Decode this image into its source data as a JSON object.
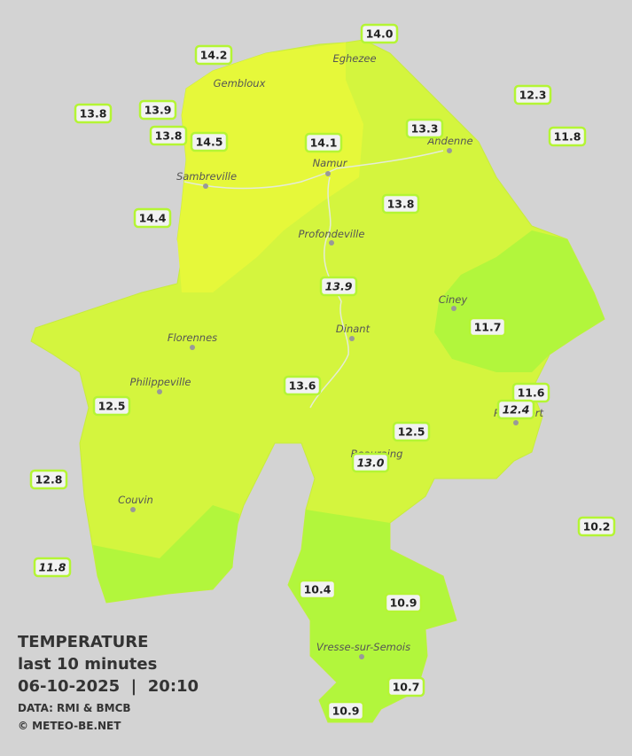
{
  "stations": [
    {
      "text": "14.0",
      "italic": false
    },
    {
      "text": "14.2",
      "italic": false
    },
    {
      "text": "13.9",
      "italic": false
    },
    {
      "text": "13.8",
      "italic": false
    },
    {
      "text": "13.8",
      "italic": false
    },
    {
      "text": "14.5",
      "italic": false
    },
    {
      "text": "14.1",
      "italic": false
    },
    {
      "text": "13.3",
      "italic": false
    },
    {
      "text": "12.3",
      "italic": false
    },
    {
      "text": "11.8",
      "italic": false
    },
    {
      "text": "13.8",
      "italic": false
    },
    {
      "text": "14.4",
      "italic": false
    },
    {
      "text": "13.9",
      "italic": true
    },
    {
      "text": "11.7",
      "italic": false
    },
    {
      "text": "13.6",
      "italic": false
    },
    {
      "text": "11.6",
      "italic": false
    },
    {
      "text": "12.4",
      "italic": true
    },
    {
      "text": "12.5",
      "italic": false
    },
    {
      "text": "12.5",
      "italic": false
    },
    {
      "text": "13.0",
      "italic": true
    },
    {
      "text": "12.8",
      "italic": false
    },
    {
      "text": "10.2",
      "italic": false
    },
    {
      "text": "11.8",
      "italic": true
    },
    {
      "text": "10.4",
      "italic": false
    },
    {
      "text": "10.9",
      "italic": false
    },
    {
      "text": "10.7",
      "italic": false
    },
    {
      "text": "10.9",
      "italic": false
    }
  ],
  "cities": [
    "Eghezee",
    "Gembloux",
    "Andenne",
    "Namur",
    "Sambreville",
    "Profondeville",
    "Ciney",
    "Dinant",
    "Florennes",
    "Philippeville",
    "Couvin",
    "Vresse-sur-Semois",
    "Rochefort",
    "Beauraing"
  ],
  "legend": {
    "title": "TEMPERATURE",
    "period": "last 10 minutes",
    "datetime": "06-10-2025  |  20:10",
    "source": "DATA: RMI & BMCB",
    "copyright": "© METEO-BE.NET"
  }
}
